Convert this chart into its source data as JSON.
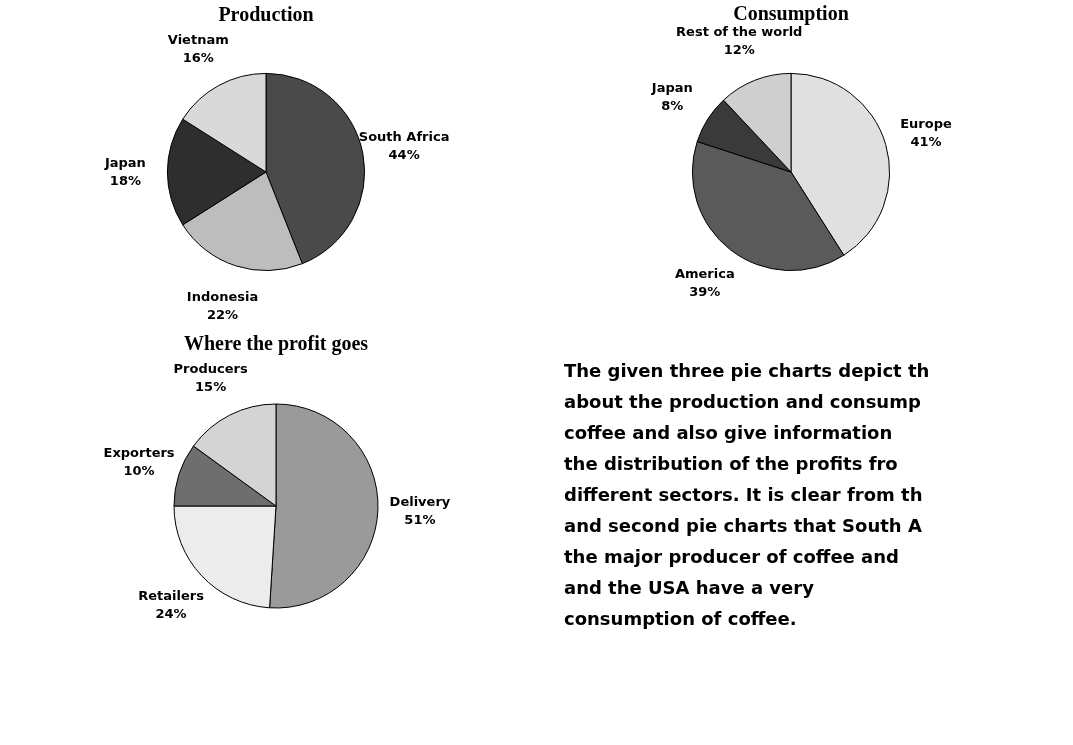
{
  "chart_data": [
    {
      "type": "pie",
      "title": "Production",
      "categories": [
        "South Africa",
        "Indonesia",
        "Japan",
        "Vietnam"
      ],
      "values": [
        44,
        22,
        18,
        16
      ],
      "value_labels": [
        "44%",
        "22%",
        "18%",
        "16%"
      ],
      "colors": [
        "#4a4a4a",
        "#bdbdbd",
        "#2e2e2e",
        "#d9d9d9"
      ],
      "legend": false
    },
    {
      "type": "pie",
      "title": "Consumption",
      "categories": [
        "Europe",
        "America",
        "Japan",
        "Rest of the world"
      ],
      "values": [
        41,
        39,
        8,
        12
      ],
      "value_labels": [
        "41%",
        "39%",
        "8%",
        "12%"
      ],
      "colors": [
        "#e0e0e0",
        "#5a5a5a",
        "#3a3a3a",
        "#cfcfcf"
      ],
      "legend": false
    },
    {
      "type": "pie",
      "title": "Where the profit goes",
      "categories": [
        "Delivery",
        "Retailers",
        "Exporters",
        "Producers"
      ],
      "values": [
        51,
        24,
        10,
        15
      ],
      "value_labels": [
        "51%",
        "24%",
        "10%",
        "15%"
      ],
      "colors": [
        "#9a9a9a",
        "#ececec",
        "#6e6e6e",
        "#d4d4d4"
      ],
      "legend": false
    },
    {
      "type": "other",
      "annotations": [
        "The given three pie charts depict th",
        "about the production and consump",
        "coffee and also give information",
        "the distribution of the profits fro",
        "different sectors. It is clear from th",
        "and second pie charts that South A",
        "the major producer of coffee and",
        "and the USA have a very",
        "consumption of coffee."
      ]
    }
  ]
}
